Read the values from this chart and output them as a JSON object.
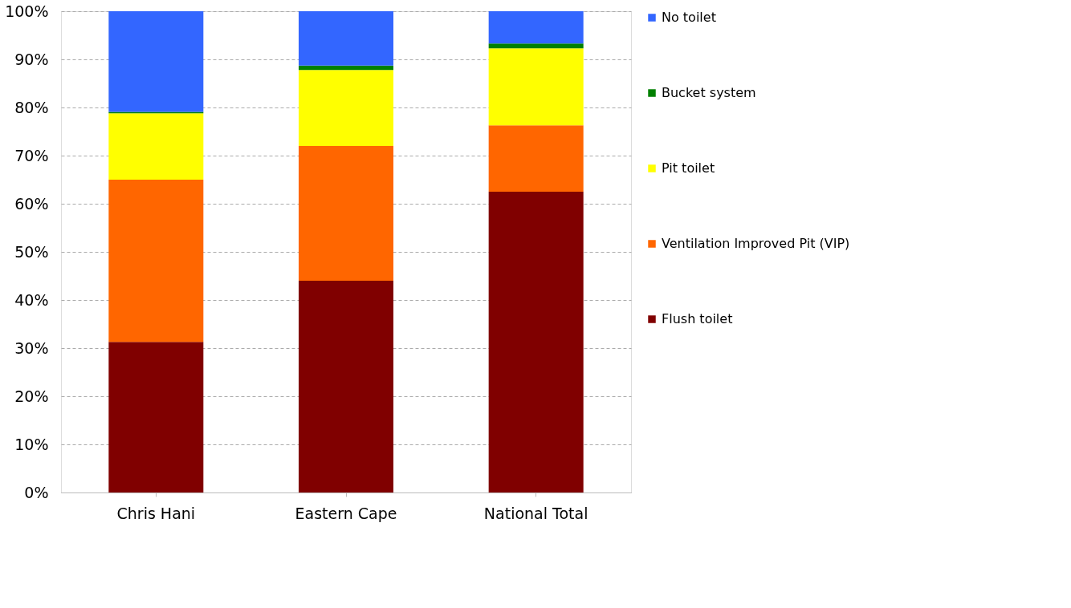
{
  "chart_data": {
    "type": "bar",
    "stacked": true,
    "categories": [
      "Chris Hani",
      "Eastern Cape",
      "National Total"
    ],
    "series": [
      {
        "name": "Flush toilet",
        "color": "#800000",
        "values": [
          31.3,
          44.0,
          62.5
        ]
      },
      {
        "name": "Ventilation Improved Pit (VIP)",
        "color": "#ff6600",
        "values": [
          33.7,
          28.0,
          13.8
        ]
      },
      {
        "name": "Pit toilet",
        "color": "#ffff00",
        "values": [
          13.8,
          15.8,
          16.0
        ]
      },
      {
        "name": "Bucket system",
        "color": "#008000",
        "values": [
          0.3,
          0.9,
          1.0
        ]
      },
      {
        "name": "No toilet",
        "color": "#3366ff",
        "values": [
          20.9,
          11.3,
          6.7
        ]
      }
    ],
    "ylim": [
      0,
      100
    ],
    "yticks": [
      {
        "value": 0,
        "label": "0%"
      },
      {
        "value": 10,
        "label": "10%"
      },
      {
        "value": 20,
        "label": "20%"
      },
      {
        "value": 30,
        "label": "30%"
      },
      {
        "value": 40,
        "label": "40%"
      },
      {
        "value": 50,
        "label": "50%"
      },
      {
        "value": 60,
        "label": "60%"
      },
      {
        "value": 70,
        "label": "70%"
      },
      {
        "value": 80,
        "label": "80%"
      },
      {
        "value": 90,
        "label": "90%"
      },
      {
        "value": 100,
        "label": "100%"
      }
    ],
    "grid": "y",
    "legend": "right"
  }
}
